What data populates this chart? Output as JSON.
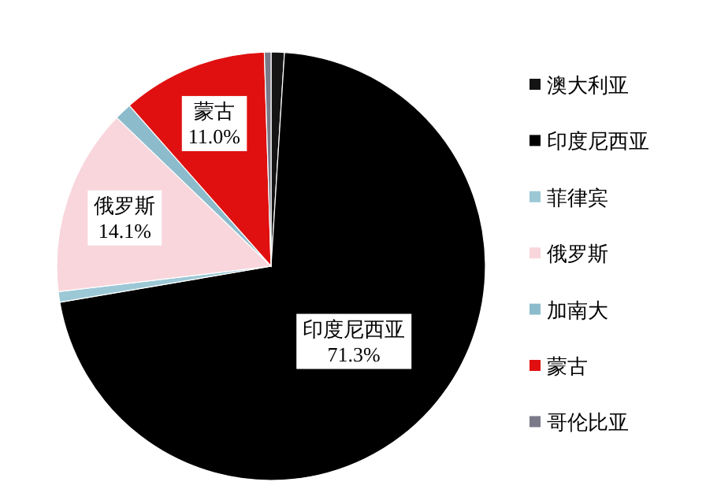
{
  "chart_data": {
    "type": "pie",
    "categories": [
      "澳大利亚",
      "印度尼西亚",
      "菲律宾",
      "俄罗斯",
      "加南大",
      "蒙古",
      "哥伦比亚"
    ],
    "values": [
      1.0,
      71.3,
      0.8,
      14.1,
      1.3,
      11.0,
      0.5
    ],
    "colors": [
      "#141414",
      "#000000",
      "#9cc8d6",
      "#f8d6dc",
      "#8cbccc",
      "#e01010",
      "#7a7a8a"
    ],
    "value_labels": [
      null,
      "印度尼西亚\n71.3%",
      null,
      "俄罗斯\n14.1%",
      null,
      "蒙古\n11.0%",
      null
    ],
    "legend": "right"
  }
}
